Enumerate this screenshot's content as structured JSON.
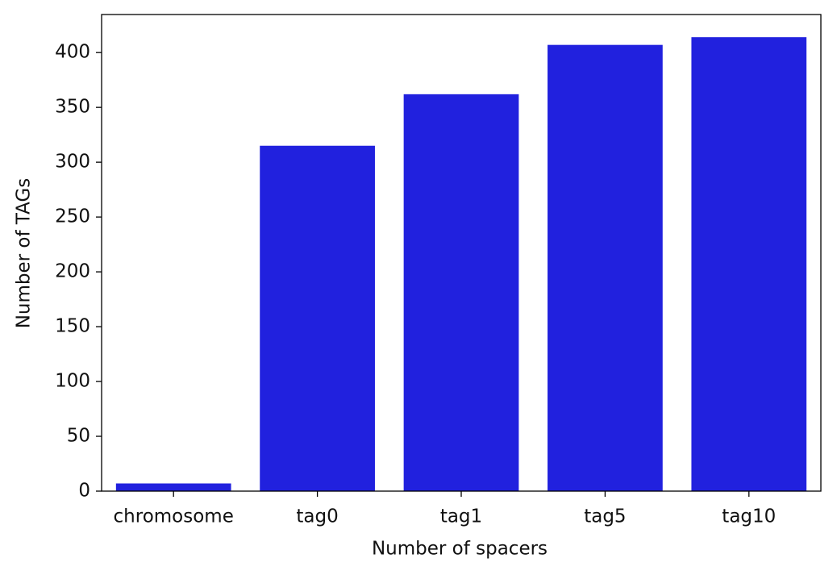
{
  "chart_data": {
    "type": "bar",
    "x_label": "Number of spacers",
    "y_label": "Number of TAGs",
    "categories": [
      "chromosome",
      "tag0",
      "tag1",
      "tag5",
      "tag10"
    ],
    "values": [
      7,
      315,
      362,
      407,
      414
    ],
    "color": "#2121de",
    "ylim": [
      0,
      434.7
    ],
    "yticks": [
      0,
      50,
      100,
      150,
      200,
      250,
      300,
      350,
      400
    ],
    "grid": false
  }
}
